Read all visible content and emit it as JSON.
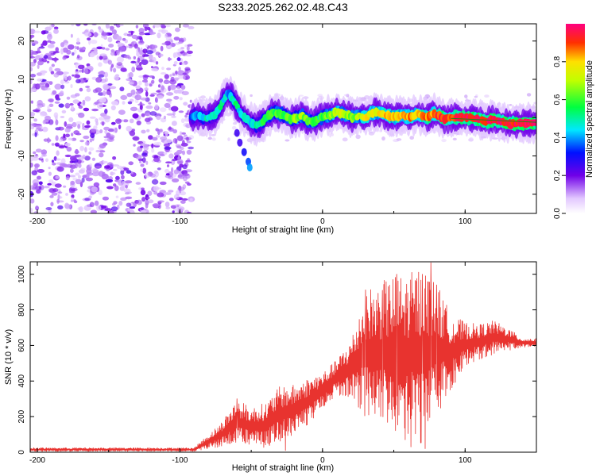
{
  "chart_data": [
    {
      "type": "heatmap",
      "title": "S233.2025.262.02.48.C43",
      "xlabel": "Height of straight line (km)",
      "ylabel": "Frequency (Hz)",
      "xlim": [
        -205,
        150
      ],
      "ylim": [
        -25,
        24.5
      ],
      "x_ticks": [
        -200,
        -100,
        0,
        100
      ],
      "y_ticks": [
        20,
        10,
        0,
        -10,
        -20
      ],
      "colorbar": {
        "label": "Normalized spectral amplitude",
        "range": [
          0,
          1
        ],
        "ticks": [
          0.0,
          0.2,
          0.4,
          0.6,
          0.8
        ]
      },
      "noise_region_x": [
        -205,
        -92
      ],
      "ridge": [
        {
          "x": -92,
          "y": 0.0,
          "a": 0.35
        },
        {
          "x": -88,
          "y": 0.5,
          "a": 0.4
        },
        {
          "x": -84,
          "y": 0.0,
          "a": 0.45
        },
        {
          "x": -80,
          "y": 0.0,
          "a": 0.45
        },
        {
          "x": -76,
          "y": 0.5,
          "a": 0.45
        },
        {
          "x": -72,
          "y": 2.5,
          "a": 0.5
        },
        {
          "x": -69,
          "y": 5.0,
          "a": 0.45
        },
        {
          "x": -66,
          "y": 6.5,
          "a": 0.4
        },
        {
          "x": -63,
          "y": 5.0,
          "a": 0.5
        },
        {
          "x": -60,
          "y": 3.0,
          "a": 0.5
        },
        {
          "x": -57,
          "y": 1.0,
          "a": 0.45
        },
        {
          "x": -54,
          "y": 0.0,
          "a": 0.45
        },
        {
          "x": -50,
          "y": -1.5,
          "a": 0.45
        },
        {
          "x": -46,
          "y": -2.0,
          "a": 0.5
        },
        {
          "x": -42,
          "y": -1.0,
          "a": 0.55
        },
        {
          "x": -38,
          "y": 0.5,
          "a": 0.55
        },
        {
          "x": -34,
          "y": 1.5,
          "a": 0.6
        },
        {
          "x": -30,
          "y": 1.0,
          "a": 0.6
        },
        {
          "x": -26,
          "y": 0.5,
          "a": 0.6
        },
        {
          "x": -22,
          "y": -0.5,
          "a": 0.6
        },
        {
          "x": -18,
          "y": 0.0,
          "a": 0.65
        },
        {
          "x": -14,
          "y": 0.5,
          "a": 0.65
        },
        {
          "x": -10,
          "y": -1.0,
          "a": 0.6
        },
        {
          "x": -6,
          "y": -1.0,
          "a": 0.6
        },
        {
          "x": -2,
          "y": 0.0,
          "a": 0.55
        },
        {
          "x": 2,
          "y": 0.5,
          "a": 0.6
        },
        {
          "x": 6,
          "y": 0.5,
          "a": 0.65
        },
        {
          "x": 10,
          "y": 1.5,
          "a": 0.7
        },
        {
          "x": 14,
          "y": 1.0,
          "a": 0.7
        },
        {
          "x": 18,
          "y": 0.5,
          "a": 0.65
        },
        {
          "x": 22,
          "y": 0.0,
          "a": 0.65
        },
        {
          "x": 26,
          "y": 0.5,
          "a": 0.7
        },
        {
          "x": 30,
          "y": 0.0,
          "a": 0.75
        },
        {
          "x": 34,
          "y": 1.0,
          "a": 0.75
        },
        {
          "x": 38,
          "y": 1.5,
          "a": 0.75
        },
        {
          "x": 42,
          "y": 1.0,
          "a": 0.8
        },
        {
          "x": 46,
          "y": 0.5,
          "a": 0.8
        },
        {
          "x": 50,
          "y": 0.0,
          "a": 0.8
        },
        {
          "x": 54,
          "y": 0.5,
          "a": 0.8
        },
        {
          "x": 58,
          "y": 0.5,
          "a": 0.85
        },
        {
          "x": 62,
          "y": 0.0,
          "a": 0.85
        },
        {
          "x": 66,
          "y": 1.0,
          "a": 0.8
        },
        {
          "x": 70,
          "y": 0.5,
          "a": 0.85
        },
        {
          "x": 74,
          "y": 0.0,
          "a": 0.85
        },
        {
          "x": 78,
          "y": 1.0,
          "a": 0.85
        },
        {
          "x": 82,
          "y": 0.5,
          "a": 0.9
        },
        {
          "x": 86,
          "y": -0.5,
          "a": 0.9
        },
        {
          "x": 90,
          "y": 0.0,
          "a": 0.9
        },
        {
          "x": 95,
          "y": 0.0,
          "a": 0.95
        },
        {
          "x": 100,
          "y": 0.0,
          "a": 0.95
        },
        {
          "x": 105,
          "y": 0.0,
          "a": 0.95
        },
        {
          "x": 110,
          "y": -0.5,
          "a": 0.95
        },
        {
          "x": 115,
          "y": -1.0,
          "a": 0.95
        },
        {
          "x": 120,
          "y": -0.5,
          "a": 0.95
        },
        {
          "x": 125,
          "y": -1.0,
          "a": 0.95
        },
        {
          "x": 130,
          "y": -1.5,
          "a": 0.95
        },
        {
          "x": 135,
          "y": -1.5,
          "a": 0.95
        },
        {
          "x": 140,
          "y": -1.5,
          "a": 0.95
        },
        {
          "x": 145,
          "y": -1.5,
          "a": 0.95
        },
        {
          "x": 150,
          "y": -1.5,
          "a": 0.95
        }
      ],
      "side_branch": [
        {
          "x": -60,
          "y": -4.0,
          "a": 0.25
        },
        {
          "x": -58,
          "y": -6.5,
          "a": 0.25
        },
        {
          "x": -55,
          "y": -9.0,
          "a": 0.3
        },
        {
          "x": -52,
          "y": -11.5,
          "a": 0.35
        },
        {
          "x": -51,
          "y": -13.0,
          "a": 0.4
        }
      ],
      "green_line": {
        "x": [
          90,
          150
        ],
        "y": [
          -0.2,
          -1.2
        ]
      }
    },
    {
      "type": "line",
      "xlabel": "Height of straight line (km)",
      "ylabel": "SNR (10 * v/v)",
      "xlim": [
        -205,
        150
      ],
      "ylim": [
        0,
        1070
      ],
      "x_ticks": [
        -200,
        -100,
        0,
        100
      ],
      "y_ticks": [
        0,
        200,
        400,
        600,
        800,
        1000
      ],
      "color": "#e8332f",
      "envelope": [
        {
          "x": -205,
          "lo": 5,
          "hi": 25
        },
        {
          "x": -90,
          "lo": 5,
          "hi": 25
        },
        {
          "x": -80,
          "lo": 20,
          "hi": 100
        },
        {
          "x": -72,
          "lo": 25,
          "hi": 160
        },
        {
          "x": -60,
          "lo": 40,
          "hi": 300
        },
        {
          "x": -50,
          "lo": 40,
          "hi": 250
        },
        {
          "x": -40,
          "lo": 20,
          "hi": 280
        },
        {
          "x": -30,
          "lo": 60,
          "hi": 370
        },
        {
          "x": -20,
          "lo": 90,
          "hi": 380
        },
        {
          "x": -10,
          "lo": 150,
          "hi": 420
        },
        {
          "x": 0,
          "lo": 250,
          "hi": 450
        },
        {
          "x": 10,
          "lo": 320,
          "hi": 520
        },
        {
          "x": 20,
          "lo": 300,
          "hi": 640
        },
        {
          "x": 30,
          "lo": 200,
          "hi": 920
        },
        {
          "x": 40,
          "lo": 150,
          "hi": 950
        },
        {
          "x": 50,
          "lo": 100,
          "hi": 1000
        },
        {
          "x": 60,
          "lo": 100,
          "hi": 1000
        },
        {
          "x": 70,
          "lo": 40,
          "hi": 1060
        },
        {
          "x": 80,
          "lo": 200,
          "hi": 950
        },
        {
          "x": 90,
          "lo": 350,
          "hi": 780
        },
        {
          "x": 100,
          "lo": 480,
          "hi": 730
        },
        {
          "x": 110,
          "lo": 520,
          "hi": 720
        },
        {
          "x": 120,
          "lo": 550,
          "hi": 740
        },
        {
          "x": 130,
          "lo": 570,
          "hi": 700
        },
        {
          "x": 140,
          "lo": 590,
          "hi": 640
        },
        {
          "x": 150,
          "lo": 590,
          "hi": 640
        }
      ],
      "peaks": [
        {
          "x": -60,
          "y": 300
        },
        {
          "x": 28,
          "y": 620
        },
        {
          "x": 30,
          "y": 800
        },
        {
          "x": 42,
          "y": 910
        },
        {
          "x": 52,
          "y": 1000
        },
        {
          "x": 62,
          "y": 990
        },
        {
          "x": 70,
          "y": 1000
        },
        {
          "x": 76,
          "y": 1065
        },
        {
          "x": 80,
          "y": 940
        }
      ],
      "troughs": [
        {
          "x": -26,
          "y": 10
        },
        {
          "x": 58,
          "y": 70
        },
        {
          "x": 62,
          "y": 30
        },
        {
          "x": 72,
          "y": 20
        }
      ]
    }
  ]
}
